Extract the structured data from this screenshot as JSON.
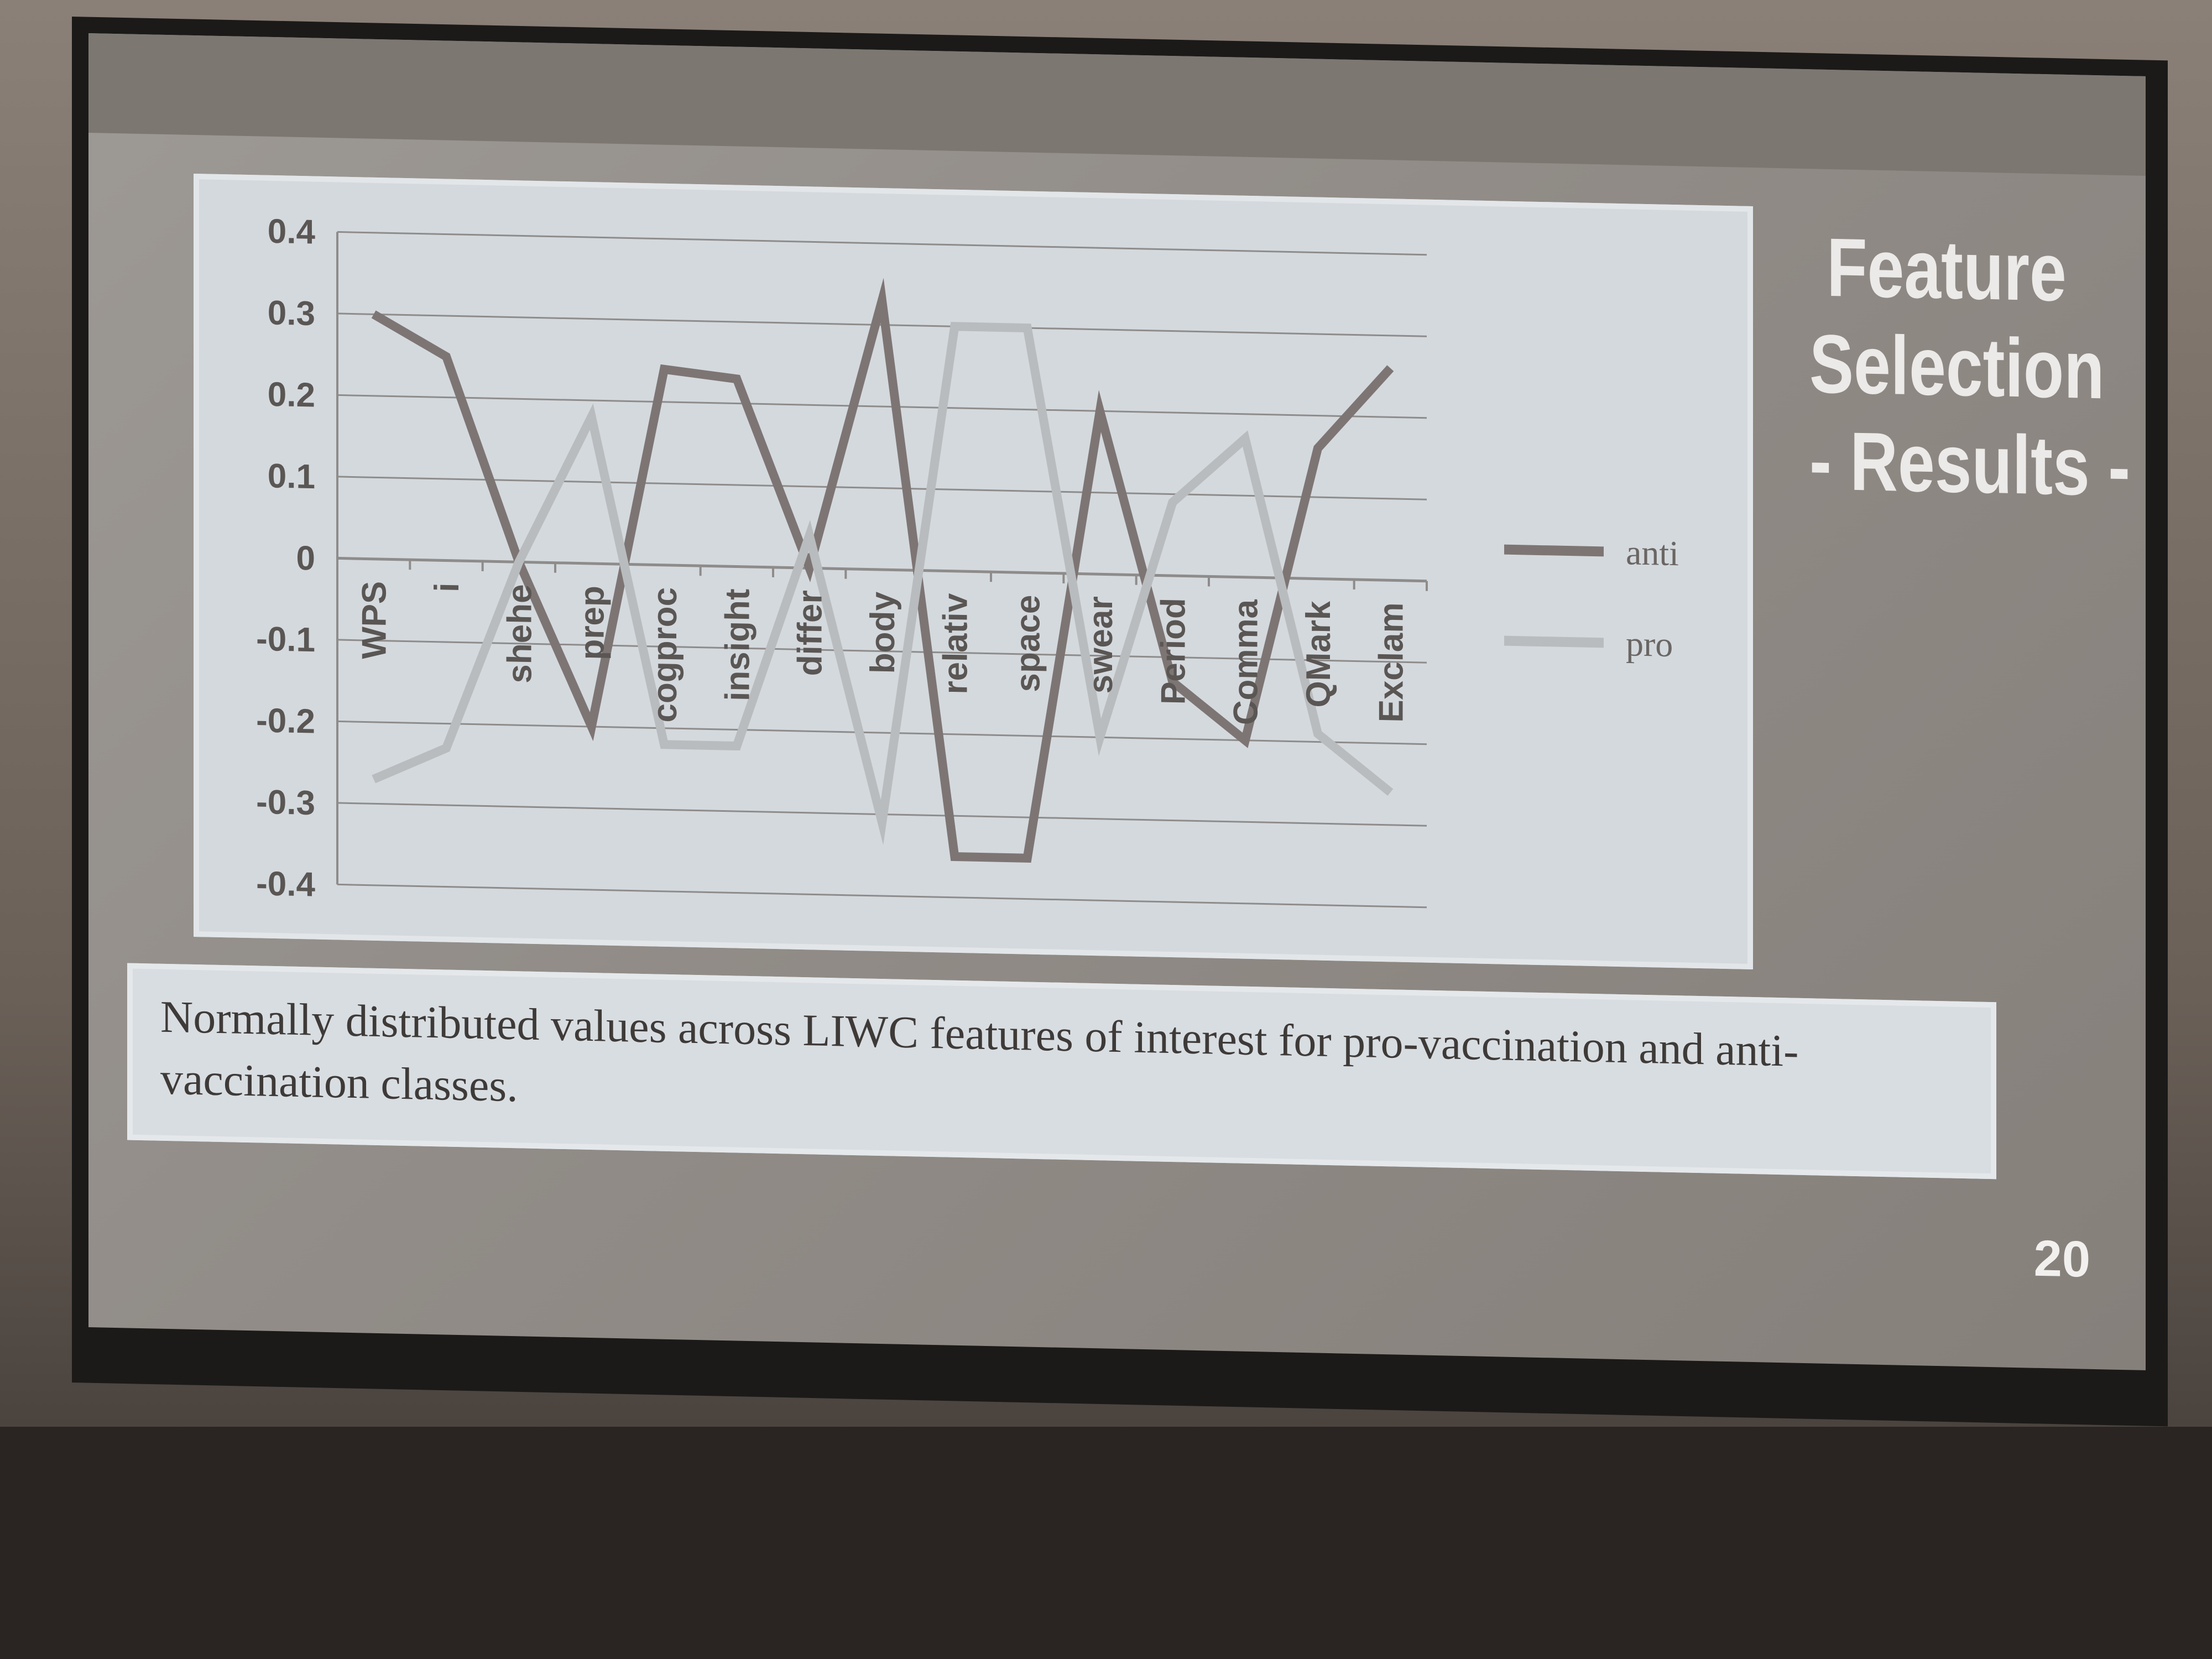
{
  "slide": {
    "title_lines": [
      "Feature",
      "Selection",
      "- Results -"
    ],
    "caption": "Normally distributed values across LIWC features of interest for pro-vaccination and anti-vaccination classes.",
    "slide_number": "20"
  },
  "colors": {
    "anti": "#7d7574",
    "pro": "#b9bcbe",
    "grid": "#8e8c8b",
    "panel": "#d4d9dd"
  },
  "chart_data": {
    "type": "line",
    "title": "",
    "xlabel": "",
    "ylabel": "",
    "ylim": [
      -0.4,
      0.4
    ],
    "yticks": [
      "0.4",
      "0.3",
      "0.2",
      "0.1",
      "0",
      "-0.1",
      "-0.2",
      "-0.3",
      "-0.4"
    ],
    "categories": [
      "WPS",
      "i",
      "shehe",
      "prep",
      "cogproc",
      "insight",
      "differ",
      "body",
      "relativ",
      "space",
      "swear",
      "Period",
      "Comma",
      "QMark",
      "Exclam"
    ],
    "legend_position": "right",
    "grid": true,
    "series": [
      {
        "name": "anti",
        "values": [
          0.3,
          0.25,
          0.0,
          -0.2,
          0.24,
          0.23,
          0.0,
          0.33,
          -0.35,
          -0.35,
          0.2,
          -0.13,
          -0.2,
          0.16,
          0.26
        ]
      },
      {
        "name": "pro",
        "values": [
          -0.27,
          -0.23,
          0.0,
          0.18,
          -0.22,
          -0.22,
          0.04,
          -0.31,
          0.3,
          0.3,
          -0.2,
          0.09,
          0.17,
          -0.19,
          -0.26
        ]
      }
    ]
  }
}
